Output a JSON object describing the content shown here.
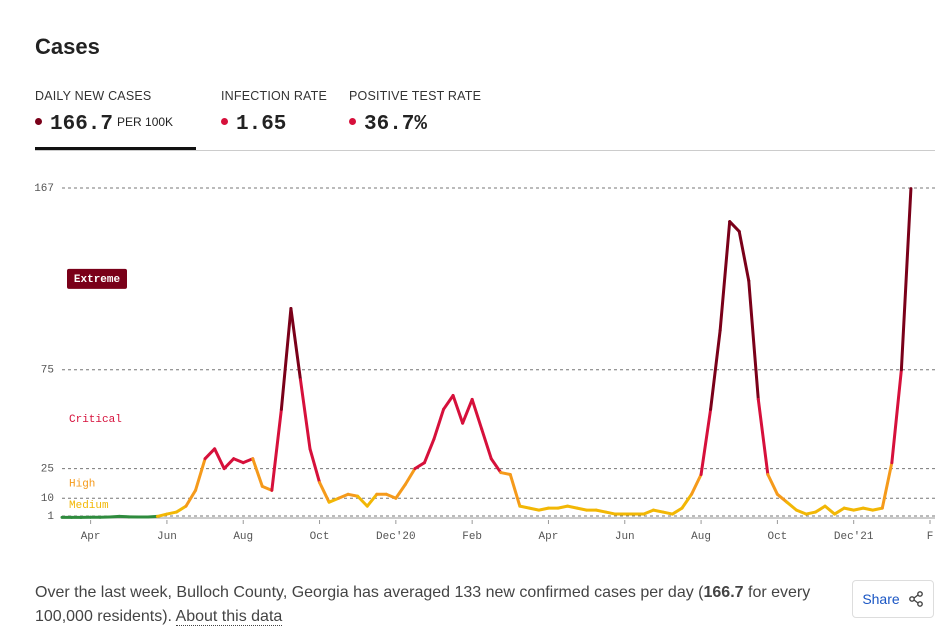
{
  "header": {
    "title": "Cases",
    "tabs": [
      {
        "label": "DAILY NEW CASES",
        "value": "166.7",
        "unit": "PER 100K",
        "color": "#7a0019"
      },
      {
        "label": "INFECTION RATE",
        "value": "1.65",
        "color": "#d6103b"
      },
      {
        "label": "POSITIVE TEST RATE",
        "value": "36.7%",
        "color": "#d6103b"
      }
    ]
  },
  "chart_data": {
    "type": "line",
    "categories": [
      null,
      null,
      null,
      "Apr",
      null,
      null,
      null,
      null,
      null,
      null,
      null,
      "Jun",
      null,
      null,
      null,
      null,
      null,
      null,
      null,
      "Aug",
      null,
      null,
      null,
      null,
      null,
      null,
      null,
      "Oct",
      null,
      null,
      null,
      null,
      null,
      null,
      null,
      "Dec'20",
      null,
      null,
      null,
      null,
      null,
      null,
      null,
      "Feb",
      null,
      null,
      null,
      null,
      null,
      null,
      null,
      "Apr",
      null,
      null,
      null,
      null,
      null,
      null,
      null,
      "Jun",
      null,
      null,
      null,
      null,
      null,
      null,
      null,
      "Aug",
      null,
      null,
      null,
      null,
      null,
      null,
      null,
      "Oct",
      null,
      null,
      null,
      null,
      null,
      null,
      null,
      "Dec'21",
      null,
      null,
      null,
      null,
      null,
      null,
      null,
      "F"
    ],
    "values": [
      0.3,
      0.3,
      0.3,
      0.4,
      0.4,
      0.5,
      0.8,
      0.6,
      0.5,
      0.5,
      0.8,
      2,
      3,
      6,
      14,
      30,
      35,
      25,
      30,
      28,
      30,
      16,
      14,
      55,
      106,
      70,
      35,
      18,
      8,
      10,
      12,
      11,
      6,
      12,
      12,
      10,
      17,
      25,
      28,
      40,
      55,
      62,
      48,
      60,
      45,
      30,
      23,
      22,
      6,
      5,
      4,
      5,
      5,
      6,
      5,
      4,
      4,
      3,
      2,
      2,
      2,
      2,
      4,
      3,
      2,
      5,
      12,
      22,
      55,
      95,
      150,
      145,
      120,
      60,
      22,
      12,
      8,
      4,
      2,
      3,
      6,
      2,
      5,
      4,
      5,
      4,
      5,
      28,
      75,
      166.7,
      null,
      null
    ],
    "base_color": "#2e8b3d",
    "levels": [
      {
        "label": "Medium",
        "from": 1,
        "to": 10,
        "color": "#f2b705"
      },
      {
        "label": "High",
        "from": 10,
        "to": 25,
        "color": "#f59a1b"
      },
      {
        "label": "Critical",
        "from": 25,
        "to": 75,
        "color": "#d6103b"
      },
      {
        "label": "Extreme",
        "from": 75,
        "to": 167,
        "color": "#7a0019"
      }
    ],
    "ylim": [
      0,
      167
    ],
    "yticks": [
      1,
      10,
      25,
      75,
      167
    ],
    "grid": true
  },
  "footer": {
    "before": "Over the last week, Bulloch County, Georgia has averaged 133 new confirmed cases per day (",
    "highlight": "166.7",
    "after": " for every 100,000 residents). ",
    "link": "About this data",
    "share": "Share"
  }
}
